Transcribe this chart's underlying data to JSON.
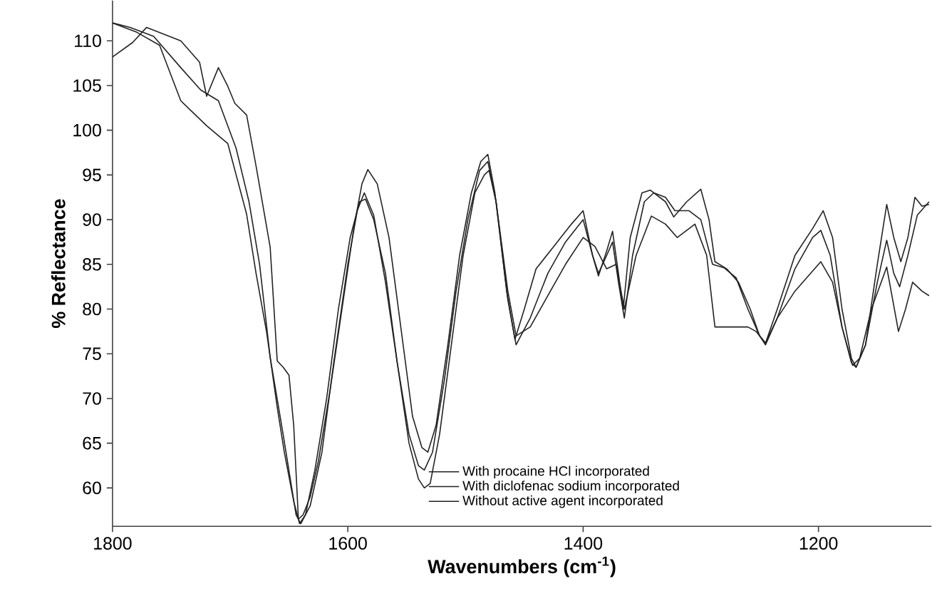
{
  "chart_data": {
    "type": "line",
    "xlabel": "Wavenumbers (cm$^{-1}$)",
    "ylabel": "% Reflectance",
    "xlim": [
      1800,
      1104
    ],
    "xticks": [
      1800,
      1600,
      1400,
      1200
    ],
    "ylim": [
      55.7,
      114.5
    ],
    "yticks": [
      60,
      65,
      70,
      75,
      80,
      85,
      90,
      95,
      100,
      105,
      110
    ],
    "legend": "bottom",
    "grid": false,
    "marker": "none",
    "line_style": "solid",
    "series": [
      {
        "name": "With procaine HCl incorporated",
        "color": "#222222",
        "x": [
          1800,
          1783,
          1771,
          1742,
          1726,
          1720,
          1710,
          1702,
          1696,
          1686,
          1678,
          1666,
          1660,
          1655,
          1650,
          1646,
          1642,
          1638,
          1632,
          1625,
          1615,
          1605,
          1595,
          1588,
          1583,
          1575,
          1565,
          1555,
          1545,
          1537,
          1532,
          1525,
          1515,
          1505,
          1495,
          1487,
          1481,
          1475,
          1465,
          1458,
          1450,
          1440,
          1425,
          1410,
          1400,
          1392,
          1387,
          1380,
          1375,
          1370,
          1366,
          1360,
          1350,
          1343,
          1330,
          1323,
          1312,
          1300,
          1293,
          1288,
          1278,
          1268,
          1258,
          1250,
          1245,
          1235,
          1220,
          1205,
          1196,
          1188,
          1180,
          1172,
          1168,
          1160,
          1150,
          1142,
          1136,
          1130,
          1124,
          1118,
          1112,
          1106
        ],
        "values": [
          108.2,
          109.8,
          111.5,
          110,
          107.6,
          103.8,
          107,
          104.9,
          103,
          101.7,
          96,
          86.9,
          74.2,
          73.5,
          72.6,
          67,
          56.5,
          57,
          59,
          63,
          71,
          80,
          89,
          94,
          95.6,
          94,
          88,
          78,
          68,
          64.5,
          64,
          67,
          76,
          86,
          93,
          96.5,
          97.3,
          93,
          82,
          76.6,
          80,
          84.5,
          87,
          89.5,
          91,
          86,
          83.7,
          86.5,
          88.7,
          84,
          79.9,
          88,
          93,
          93.3,
          92,
          90.3,
          92,
          93.4,
          90,
          85.3,
          84.5,
          83,
          80,
          77,
          76.2,
          80,
          86,
          89,
          91,
          88,
          80,
          74.5,
          73.5,
          76,
          85,
          91.7,
          88,
          85.3,
          88,
          92.5,
          91.5,
          91.7
        ]
      },
      {
        "name": "With diclofenac sodium incorporated",
        "color": "#222222",
        "x": [
          1800,
          1785,
          1765,
          1742,
          1725,
          1710,
          1695,
          1684,
          1675,
          1666,
          1655,
          1644,
          1640,
          1632,
          1622,
          1612,
          1600,
          1592,
          1586,
          1578,
          1568,
          1558,
          1548,
          1540,
          1535,
          1528,
          1518,
          1508,
          1498,
          1488,
          1481,
          1474,
          1464,
          1457,
          1445,
          1430,
          1415,
          1400,
          1392,
          1387,
          1380,
          1375,
          1370,
          1365,
          1358,
          1348,
          1340,
          1330,
          1322,
          1310,
          1300,
          1290,
          1280,
          1270,
          1260,
          1250,
          1245,
          1235,
          1220,
          1205,
          1198,
          1190,
          1180,
          1172,
          1168,
          1160,
          1150,
          1142,
          1136,
          1131,
          1124,
          1116,
          1106
        ],
        "values": [
          112,
          111.5,
          110.5,
          107,
          104.5,
          103.3,
          98,
          92,
          85,
          74.6,
          66,
          57,
          56,
          58,
          64,
          74,
          85,
          91,
          93,
          90.5,
          83,
          74,
          66,
          62.5,
          62,
          64,
          72,
          82,
          90,
          95.5,
          96.5,
          92,
          81,
          76,
          79,
          84,
          87.5,
          90,
          86,
          84,
          86,
          87.5,
          83,
          79,
          86,
          92,
          93,
          92.5,
          91,
          91,
          90,
          85,
          84.6,
          83.5,
          80,
          77,
          76,
          79,
          84.5,
          88,
          88.8,
          86,
          78,
          74,
          73.5,
          76,
          83,
          87.7,
          84,
          82.5,
          86,
          90.5,
          92
        ]
      },
      {
        "name": "Without active agent incorporated",
        "color": "#222222",
        "x": [
          1800,
          1780,
          1760,
          1742,
          1720,
          1702,
          1686,
          1678,
          1669,
          1660,
          1654,
          1646,
          1641,
          1636,
          1628,
          1618,
          1608,
          1598,
          1590,
          1585,
          1578,
          1568,
          1558,
          1548,
          1540,
          1535,
          1530,
          1522,
          1512,
          1502,
          1492,
          1484,
          1480,
          1474,
          1464,
          1457,
          1445,
          1430,
          1415,
          1400,
          1390,
          1380,
          1372,
          1365,
          1355,
          1342,
          1330,
          1320,
          1305,
          1295,
          1288,
          1275,
          1260,
          1253,
          1245,
          1235,
          1220,
          1198,
          1188,
          1180,
          1171,
          1165,
          1155,
          1142,
          1132,
          1126,
          1120,
          1112,
          1106
        ],
        "values": [
          112,
          111,
          109.5,
          103.3,
          100.5,
          98.5,
          90.6,
          84,
          77.4,
          69,
          64,
          58.5,
          56,
          57,
          62,
          70,
          80,
          88,
          92,
          92.3,
          90,
          84,
          74,
          65,
          61,
          60,
          60.5,
          66,
          76,
          86,
          93,
          95,
          95.5,
          92,
          82,
          77,
          78,
          81.5,
          85,
          88,
          87,
          84.5,
          85,
          80,
          86,
          90.4,
          89.5,
          88,
          89.5,
          86,
          78,
          78,
          78,
          77.5,
          76.2,
          79,
          82,
          85.3,
          83,
          78,
          73.7,
          74.5,
          80,
          84.7,
          77.5,
          80,
          83,
          82,
          81.5
        ]
      }
    ]
  }
}
